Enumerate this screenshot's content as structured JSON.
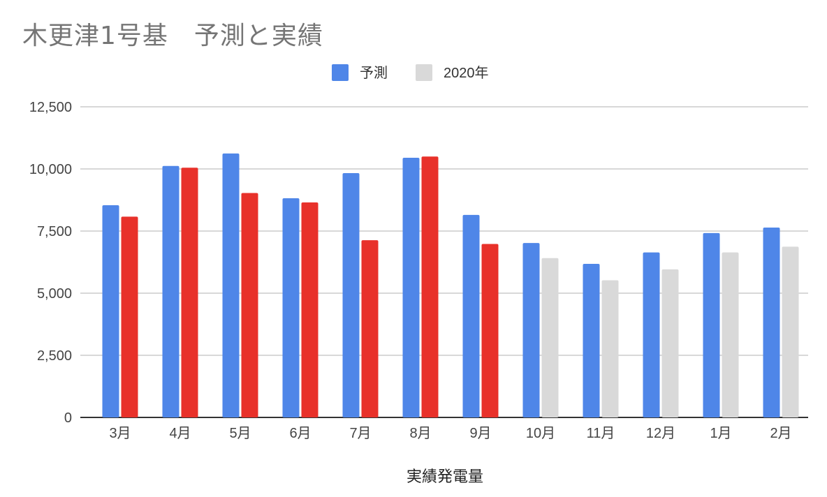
{
  "chart_data": {
    "type": "bar",
    "title": "木更津1号基　予測と実績",
    "xlabel": "実績発電量",
    "ylabel": "",
    "categories": [
      "3月",
      "4月",
      "5月",
      "6月",
      "7月",
      "8月",
      "9月",
      "10月",
      "11月",
      "12月",
      "1月",
      "2月"
    ],
    "series": [
      {
        "name": "予測",
        "color": "#4f86e8",
        "values": [
          8540,
          10120,
          10620,
          8820,
          9830,
          10450,
          8150,
          7020,
          6180,
          6640,
          7420,
          7640
        ]
      },
      {
        "name": "2020年",
        "color": "#d9d9d9",
        "values": [
          8080,
          10050,
          9030,
          8650,
          7130,
          10500,
          6980,
          6410,
          5520,
          5960,
          6640,
          6870
        ]
      }
    ],
    "actual_color": "#e8312a",
    "actual_count": 7,
    "ylim": [
      0,
      12500
    ],
    "yticks": [
      "0",
      "2,500",
      "5,000",
      "7,500",
      "10,000",
      "12,500"
    ],
    "ytick_values": [
      0,
      2500,
      5000,
      7500,
      10000,
      12500
    ],
    "grid": true,
    "legend_position": "top-center"
  }
}
